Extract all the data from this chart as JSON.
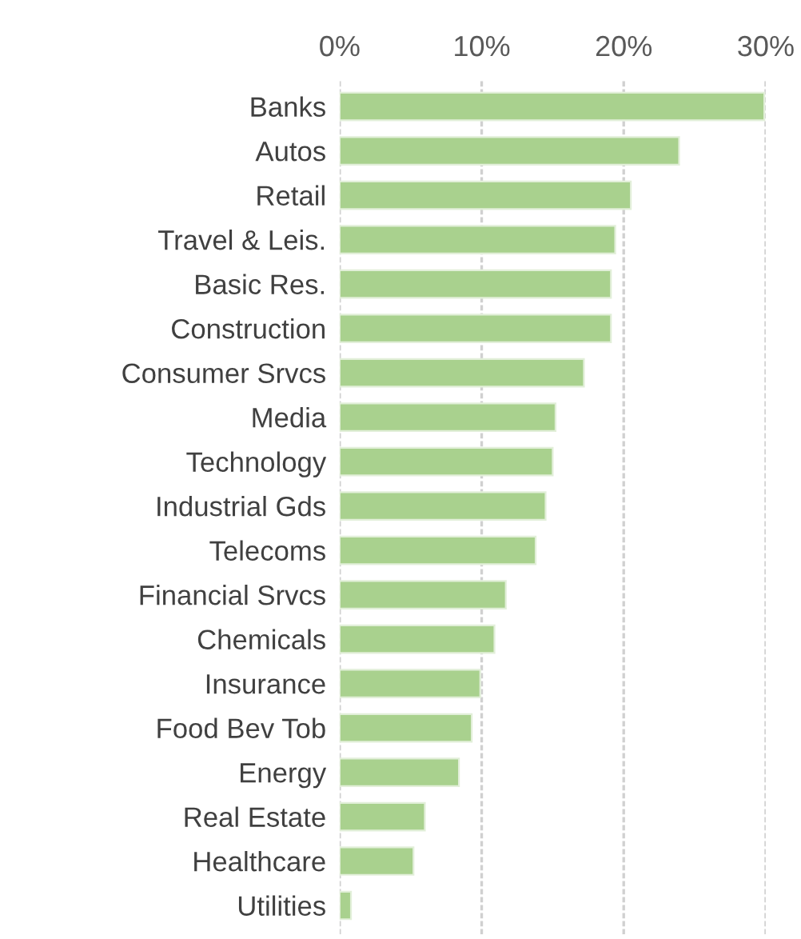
{
  "chart_data": {
    "type": "bar",
    "orientation": "horizontal",
    "categories": [
      "Banks",
      "Autos",
      "Retail",
      "Travel & Leis.",
      "Basic Res.",
      "Construction",
      "Consumer Srvcs",
      "Media",
      "Technology",
      "Industrial Gds",
      "Telecoms",
      "Financial Srvcs",
      "Chemicals",
      "Insurance",
      "Food Bev Tob",
      "Energy",
      "Real Estate",
      "Healthcare",
      "Utilities"
    ],
    "values": [
      29.9,
      23.9,
      20.5,
      19.4,
      19.1,
      19.1,
      17.2,
      15.2,
      15.0,
      14.5,
      13.8,
      11.7,
      10.9,
      9.9,
      9.3,
      8.4,
      6.0,
      5.2,
      0.8
    ],
    "color": "#a9d18e",
    "xlim": [
      0,
      30
    ],
    "xticks": [
      {
        "value": 0,
        "label": "0%"
      },
      {
        "value": 10,
        "label": "10%"
      },
      {
        "value": 20,
        "label": "20%"
      },
      {
        "value": 30,
        "label": "30%"
      }
    ],
    "grid": "x"
  }
}
